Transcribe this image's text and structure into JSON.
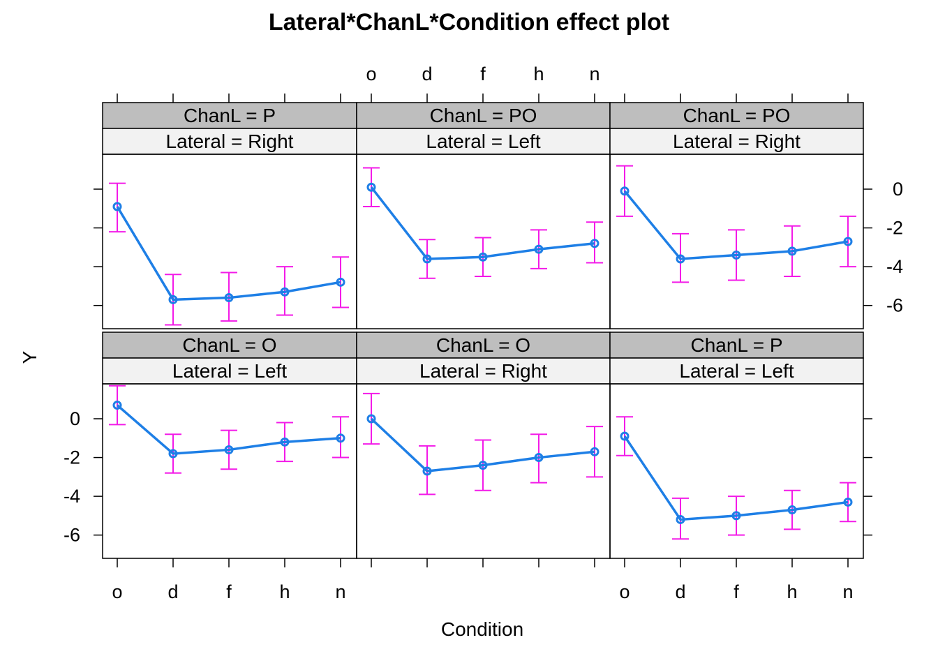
{
  "chart_data": {
    "type": "line",
    "title": "Lateral*ChanL*Condition effect plot",
    "xlabel": "Condition",
    "ylabel": "Y",
    "categories": [
      "o",
      "d",
      "f",
      "h",
      "n"
    ],
    "yticks": [
      0,
      -2,
      -4,
      -6
    ],
    "ylim": [
      -7.2,
      1.8
    ],
    "colors": {
      "line": "#1E7FE6",
      "error_bar": "#F31BE8",
      "strip_outer": "#BEBEBE",
      "strip_inner": "#F2F2F2"
    },
    "panels": [
      {
        "chanl": "ChanL = P",
        "lateral": "Lateral = Right",
        "values": [
          -0.9,
          -5.7,
          -5.6,
          -5.3,
          -4.8
        ],
        "lower": [
          -2.2,
          -7.0,
          -6.8,
          -6.5,
          -6.1
        ],
        "upper": [
          0.3,
          -4.4,
          -4.3,
          -4.0,
          -3.5
        ]
      },
      {
        "chanl": "ChanL = PO",
        "lateral": "Lateral = Left",
        "values": [
          0.1,
          -3.6,
          -3.5,
          -3.1,
          -2.8
        ],
        "lower": [
          -0.9,
          -4.6,
          -4.5,
          -4.1,
          -3.8
        ],
        "upper": [
          1.1,
          -2.6,
          -2.5,
          -2.1,
          -1.7
        ]
      },
      {
        "chanl": "ChanL = PO",
        "lateral": "Lateral = Right",
        "values": [
          -0.1,
          -3.6,
          -3.4,
          -3.2,
          -2.7
        ],
        "lower": [
          -1.4,
          -4.8,
          -4.7,
          -4.5,
          -4.0
        ],
        "upper": [
          1.2,
          -2.3,
          -2.1,
          -1.9,
          -1.4
        ]
      },
      {
        "chanl": "ChanL = O",
        "lateral": "Lateral = Left",
        "values": [
          0.7,
          -1.8,
          -1.6,
          -1.2,
          -1.0
        ],
        "lower": [
          -0.3,
          -2.8,
          -2.6,
          -2.2,
          -2.0
        ],
        "upper": [
          1.7,
          -0.8,
          -0.6,
          -0.2,
          0.1
        ]
      },
      {
        "chanl": "ChanL = O",
        "lateral": "Lateral = Right",
        "values": [
          0.0,
          -2.7,
          -2.4,
          -2.0,
          -1.7
        ],
        "lower": [
          -1.3,
          -3.9,
          -3.7,
          -3.3,
          -3.0
        ],
        "upper": [
          1.3,
          -1.4,
          -1.1,
          -0.8,
          -0.4
        ]
      },
      {
        "chanl": "ChanL = P",
        "lateral": "Lateral = Left",
        "values": [
          -0.9,
          -5.2,
          -5.0,
          -4.7,
          -4.3
        ],
        "lower": [
          -1.9,
          -6.2,
          -6.0,
          -5.7,
          -5.3
        ],
        "upper": [
          0.1,
          -4.1,
          -4.0,
          -3.7,
          -3.3
        ]
      }
    ]
  }
}
